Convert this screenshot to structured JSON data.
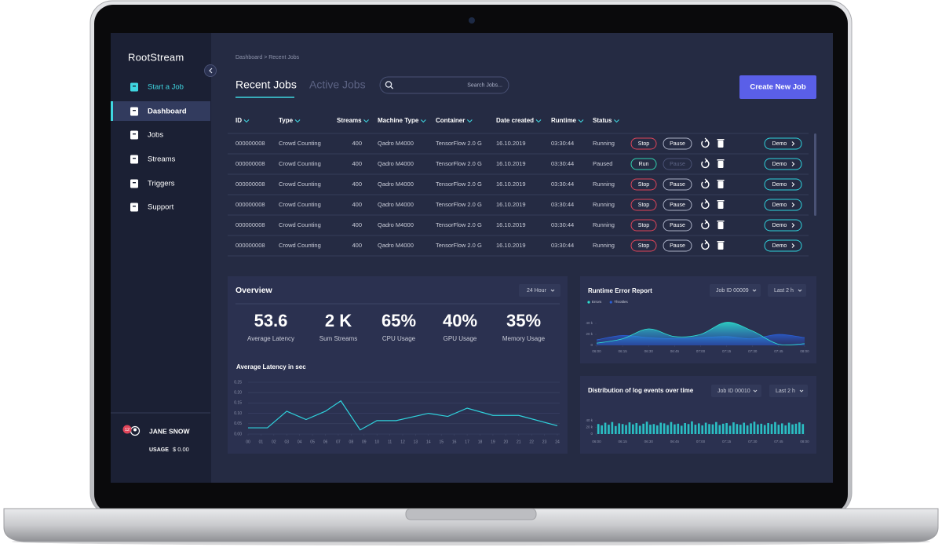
{
  "brand": "RootStream",
  "sidebar": {
    "nav": [
      "Start a Job",
      "Dashboard",
      "Jobs",
      "Streams",
      "Triggers",
      "Support"
    ],
    "user": {
      "badge": 12,
      "name": "JANE SNOW",
      "usage_label": "USAGE",
      "usage": "$ 0.00"
    }
  },
  "breadcrumb": "Dashboard > Recent Jobs",
  "tabs": [
    "Recent Jobs",
    "Active Jobs"
  ],
  "search_placeholder": "Search Jobs...",
  "create_button": "Create New Job",
  "table": {
    "columns": [
      "ID",
      "Type",
      "Streams",
      "Machine Type",
      "Container",
      "Date created",
      "Runtime",
      "Status"
    ],
    "rows": [
      {
        "id": "000000008",
        "type": "Crowd Counting",
        "streams": 400,
        "machine": "Qadro M4000",
        "container": "TensorFlow 2.0 G",
        "date": "16.10.2019",
        "runtime": "03:30:44",
        "status": "Running",
        "primary_action": "Stop",
        "secondary_action": "Pause",
        "secondary_enabled": true,
        "link": "Demo"
      },
      {
        "id": "000000008",
        "type": "Crowd Counting",
        "streams": 400,
        "machine": "Qadro M4000",
        "container": "TensorFlow 2.0 G",
        "date": "16.10.2019",
        "runtime": "03:30:44",
        "status": "Paused",
        "primary_action": "Run",
        "secondary_action": "Pause",
        "secondary_enabled": false,
        "link": "Demo"
      },
      {
        "id": "000000008",
        "type": "Crowd Counting",
        "streams": 400,
        "machine": "Qadro M4000",
        "container": "TensorFlow 2.0 G",
        "date": "16.10.2019",
        "runtime": "03:30:44",
        "status": "Running",
        "primary_action": "Stop",
        "secondary_action": "Pause",
        "secondary_enabled": true,
        "link": "Demo"
      },
      {
        "id": "000000008",
        "type": "Crowd Counting",
        "streams": 400,
        "machine": "Qadro M4000",
        "container": "TensorFlow 2.0 G",
        "date": "16.10.2019",
        "runtime": "03:30:44",
        "status": "Running",
        "primary_action": "Stop",
        "secondary_action": "Pause",
        "secondary_enabled": true,
        "link": "Demo"
      },
      {
        "id": "000000008",
        "type": "Crowd Counting",
        "streams": 400,
        "machine": "Qadro M4000",
        "container": "TensorFlow 2.0 G",
        "date": "16.10.2019",
        "runtime": "03:30:44",
        "status": "Running",
        "primary_action": "Stop",
        "secondary_action": "Pause",
        "secondary_enabled": true,
        "link": "Demo"
      },
      {
        "id": "000000008",
        "type": "Crowd Counting",
        "streams": 400,
        "machine": "Qadro M4000",
        "container": "TensorFlow 2.0 G",
        "date": "16.10.2019",
        "runtime": "03:30:44",
        "status": "Running",
        "primary_action": "Stop",
        "secondary_action": "Pause",
        "secondary_enabled": true,
        "link": "Demo"
      }
    ]
  },
  "overview": {
    "title": "Overview",
    "range": "24 Hour",
    "stats": [
      {
        "value": "53.6",
        "label": "Average Latency"
      },
      {
        "value": "2 K",
        "label": "Sum Streams"
      },
      {
        "value": "65%",
        "label": "CPU Usage"
      },
      {
        "value": "40%",
        "label": "GPU Usage"
      },
      {
        "value": "35%",
        "label": "Memory Usage"
      }
    ]
  },
  "chart_data": [
    {
      "type": "line",
      "title": "Average Latency in sec",
      "x": [
        0,
        1.5,
        3,
        4.5,
        6,
        7.2,
        8.7,
        10,
        11.5,
        14,
        15.5,
        17,
        19,
        21,
        24
      ],
      "values": [
        0.03,
        0.03,
        0.11,
        0.07,
        0.11,
        0.16,
        0.02,
        0.065,
        0.065,
        0.1,
        0.085,
        0.125,
        0.09,
        0.09,
        0.04
      ],
      "color": "#2fd3dd",
      "xlim": [
        0,
        24
      ],
      "xticks": [
        {
          "value": 0,
          "label": "00"
        },
        {
          "value": 1,
          "label": "01"
        },
        {
          "value": 2,
          "label": "02"
        },
        {
          "value": 3,
          "label": "03"
        },
        {
          "value": 4,
          "label": "04"
        },
        {
          "value": 5,
          "label": "05"
        },
        {
          "value": 6,
          "label": "06"
        },
        {
          "value": 7,
          "label": "07"
        },
        {
          "value": 8,
          "label": "08"
        },
        {
          "value": 9,
          "label": "09"
        },
        10,
        11,
        12,
        13,
        14,
        15,
        16,
        17,
        18,
        19,
        20,
        21,
        22,
        23,
        24
      ],
      "ylim": [
        0,
        0.25
      ],
      "yticks": [
        {
          "value": 0,
          "label": "0.00"
        },
        0.05,
        {
          "value": 0.1,
          "label": "0.10"
        },
        0.15,
        {
          "value": 0.2,
          "label": "0.20"
        },
        0.25
      ],
      "grid": true
    },
    {
      "type": "area",
      "title": "Runtime Error Report",
      "controls": [
        "Job ID 00009",
        "Last 2 h"
      ],
      "x": [
        0,
        15,
        30,
        45,
        60,
        75,
        90,
        105,
        120
      ],
      "series": [
        {
          "name": "Errors",
          "color": "#2de0d0",
          "values": [
            4000,
            12000,
            30000,
            16000,
            20000,
            42000,
            26000,
            2000,
            3000
          ]
        },
        {
          "name": "Throttles",
          "color": "#2a5fd8",
          "values": [
            10000,
            18000,
            14000,
            12000,
            14000,
            16000,
            12000,
            20000,
            14000
          ]
        }
      ],
      "xlim": [
        0,
        120
      ],
      "xticks": [
        {
          "value": 0,
          "label": "06:00"
        },
        {
          "value": 15,
          "label": "06:15"
        },
        {
          "value": 30,
          "label": "06:30"
        },
        {
          "value": 45,
          "label": "06:45"
        },
        {
          "value": 60,
          "label": "07:00"
        },
        {
          "value": 75,
          "label": "07:15"
        },
        {
          "value": 90,
          "label": "07:30"
        },
        {
          "value": 105,
          "label": "07:45"
        },
        {
          "value": 120,
          "label": "08:00"
        }
      ],
      "ylim": [
        0,
        50000
      ],
      "yticks": [
        0,
        {
          "value": 20000,
          "label": "20 k"
        },
        {
          "value": 40000,
          "label": "40 k"
        }
      ]
    },
    {
      "type": "bar",
      "title": "Distribution of log events over time",
      "controls": [
        "Job ID 00010",
        "Last 2 h"
      ],
      "color": "#2bbfc4",
      "x": [
        1,
        3,
        5,
        7,
        9,
        11,
        13,
        15,
        17,
        19,
        21,
        23,
        25,
        27,
        29,
        31,
        33,
        35,
        37,
        39,
        41,
        43,
        45,
        47,
        49,
        51,
        53,
        55,
        57,
        59,
        61,
        63,
        65,
        67,
        69,
        71,
        73,
        75,
        77,
        79,
        81,
        83,
        85,
        87,
        89,
        91,
        93,
        95,
        97,
        99,
        101,
        103,
        105,
        107,
        109,
        111,
        113,
        115,
        117,
        119
      ],
      "values": [
        30000,
        26000,
        34000,
        28000,
        36000,
        24000,
        32000,
        30000,
        27000,
        35000,
        29000,
        33000,
        25000,
        31000,
        37000,
        28000,
        30000,
        26000,
        34000,
        32000,
        27000,
        36000,
        29000,
        31000,
        25000,
        33000,
        30000,
        38000,
        28000,
        32000,
        26000,
        34000,
        30000,
        29000,
        36000,
        27000,
        31000,
        33000,
        25000,
        35000,
        30000,
        28000,
        34000,
        26000,
        32000,
        37000,
        29000,
        31000,
        27000,
        33000,
        30000,
        36000,
        28000,
        32000,
        26000,
        34000,
        29000,
        31000,
        35000,
        30000
      ],
      "xlim": [
        0,
        120
      ],
      "xticks": [
        {
          "value": 0,
          "label": "06:00"
        },
        {
          "value": 15,
          "label": "06:15"
        },
        {
          "value": 30,
          "label": "06:30"
        },
        {
          "value": 45,
          "label": "06:45"
        },
        {
          "value": 60,
          "label": "07:00"
        },
        {
          "value": 75,
          "label": "07:15"
        },
        {
          "value": 90,
          "label": "07:30"
        },
        {
          "value": 105,
          "label": "07:45"
        },
        {
          "value": 120,
          "label": "08:00"
        }
      ],
      "ylim": [
        0,
        50000
      ],
      "yticks": [
        0,
        {
          "value": 20000,
          "label": "20 k"
        },
        {
          "value": 40000,
          "label": "40 k"
        }
      ]
    }
  ]
}
